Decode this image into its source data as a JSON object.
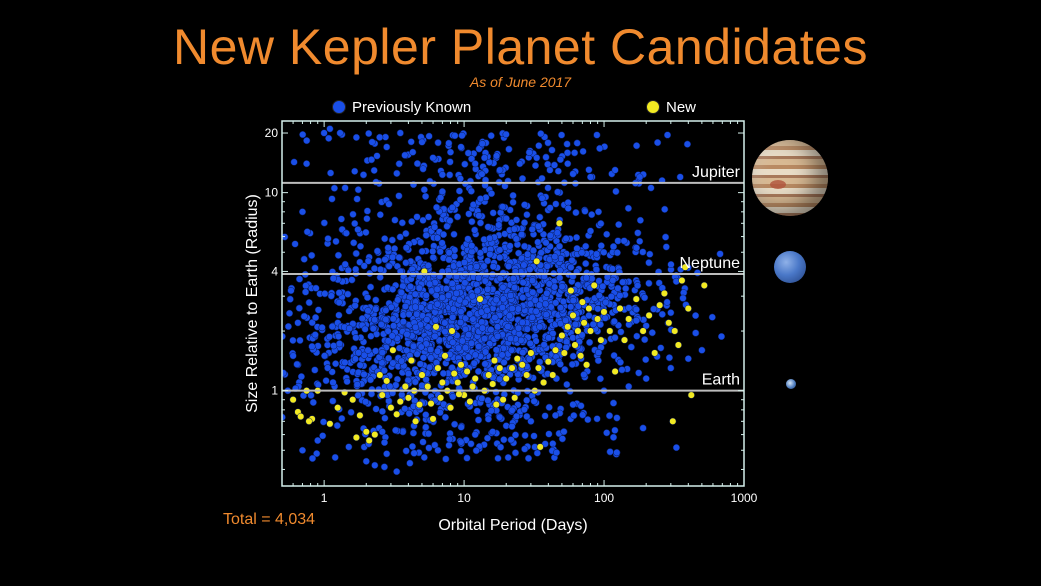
{
  "title": "New Kepler Planet Candidates",
  "subtitle": "As of June 2017",
  "total_label": "Total = 4,034",
  "colors": {
    "title": "#f08a2e",
    "previously_known": "#1a4fe8",
    "new": "#f2ea22",
    "reference_line": "#bcbcbc",
    "axes": "#d6f0ec"
  },
  "legend": [
    {
      "label": "Previously Known",
      "color": "#1a4fe8"
    },
    {
      "label": "New",
      "color": "#f2ea22"
    }
  ],
  "reference_planets": [
    {
      "name": "Jupiter",
      "radius": 11.2,
      "icon": "jupiter-image"
    },
    {
      "name": "Neptune",
      "radius": 3.88,
      "icon": "neptune-image"
    },
    {
      "name": "Earth",
      "radius": 1.0,
      "icon": "earth-image"
    }
  ],
  "chart_data": {
    "type": "scatter",
    "xlabel": "Orbital Period (Days)",
    "ylabel": "Size Relative to Earth (Radius)",
    "x_scale": "log",
    "y_scale": "log",
    "xlim": [
      0.5,
      1000
    ],
    "ylim": [
      0.33,
      23
    ],
    "x_ticks": [
      1,
      10,
      100,
      1000
    ],
    "x_tick_labels": [
      "1",
      "10",
      "100",
      "1000"
    ],
    "y_ticks": [
      1,
      4,
      10,
      20
    ],
    "y_tick_labels": [
      "1",
      "4",
      "10",
      "20"
    ],
    "grid": false,
    "legend_position": "top",
    "series": [
      {
        "name": "Previously Known",
        "color": "#1a4fe8",
        "count": 3815,
        "cloud": {
          "peak_x": 12,
          "peak_y": 2.3,
          "dist": "lognormal"
        },
        "points": [
          [
            1.0,
            20
          ],
          [
            1.1,
            21
          ],
          [
            1.3,
            20
          ],
          [
            1.7,
            19
          ],
          [
            2.2,
            18
          ],
          [
            2.8,
            17
          ],
          [
            3.5,
            20
          ],
          [
            4.3,
            16
          ],
          [
            5.0,
            18
          ],
          [
            6.0,
            15
          ],
          [
            8.0,
            16
          ],
          [
            9.5,
            17
          ],
          [
            12,
            14
          ],
          [
            14,
            15
          ],
          [
            18,
            13
          ],
          [
            25,
            14
          ],
          [
            33,
            15
          ],
          [
            41,
            13
          ],
          [
            55,
            14
          ],
          [
            80,
            12
          ],
          [
            120,
            13
          ],
          [
            180,
            12
          ],
          [
            260,
            11.5
          ],
          [
            350,
            12
          ],
          [
            0.7,
            0.5
          ],
          [
            0.9,
            0.56
          ],
          [
            1.2,
            0.46
          ],
          [
            1.5,
            0.52
          ],
          [
            2.0,
            0.44
          ],
          [
            2.3,
            0.42
          ],
          [
            2.8,
            0.48
          ],
          [
            3.3,
            0.39
          ],
          [
            4.1,
            0.43
          ],
          [
            5.2,
            0.46
          ],
          [
            6.5,
            0.5
          ],
          [
            7.8,
            0.53
          ],
          [
            9.5,
            0.55
          ],
          [
            12,
            0.6
          ],
          [
            16,
            0.62
          ],
          [
            22,
            0.66
          ],
          [
            30,
            0.7
          ],
          [
            45,
            0.75
          ],
          [
            60,
            0.85
          ],
          [
            100,
            1.0
          ],
          [
            150,
            1.05
          ],
          [
            200,
            1.15
          ],
          [
            300,
            1.3
          ],
          [
            400,
            1.45
          ],
          [
            500,
            1.6
          ],
          [
            0.55,
            1.0
          ],
          [
            0.6,
            1.5
          ],
          [
            0.65,
            2.2
          ],
          [
            0.58,
            3.2
          ],
          [
            0.62,
            5.5
          ],
          [
            0.7,
            8.0
          ],
          [
            0.75,
            14
          ]
        ]
      },
      {
        "name": "New",
        "color": "#f2ea22",
        "count": 219,
        "points": [
          [
            0.6,
            0.9
          ],
          [
            0.65,
            0.78
          ],
          [
            0.68,
            0.74
          ],
          [
            0.75,
            1.0
          ],
          [
            0.82,
            0.72
          ],
          [
            0.9,
            1.0
          ],
          [
            1.1,
            0.68
          ],
          [
            1.25,
            0.82
          ],
          [
            1.4,
            0.98
          ],
          [
            1.6,
            0.9
          ],
          [
            1.8,
            0.75
          ],
          [
            2.0,
            0.62
          ],
          [
            2.1,
            0.56
          ],
          [
            2.3,
            0.6
          ],
          [
            2.5,
            1.2
          ],
          [
            2.6,
            0.95
          ],
          [
            2.8,
            1.12
          ],
          [
            3.0,
            0.82
          ],
          [
            3.1,
            1.6
          ],
          [
            3.3,
            0.76
          ],
          [
            3.5,
            0.88
          ],
          [
            3.8,
            1.05
          ],
          [
            4.0,
            0.92
          ],
          [
            4.2,
            1.42
          ],
          [
            4.5,
            0.7
          ],
          [
            4.8,
            0.85
          ],
          [
            5.0,
            1.2
          ],
          [
            5.2,
            4.0
          ],
          [
            5.5,
            1.05
          ],
          [
            5.8,
            0.86
          ],
          [
            6.0,
            0.72
          ],
          [
            6.3,
            2.1
          ],
          [
            6.5,
            1.3
          ],
          [
            6.8,
            0.92
          ],
          [
            7.0,
            1.1
          ],
          [
            7.3,
            1.5
          ],
          [
            7.6,
            1.0
          ],
          [
            8.0,
            0.82
          ],
          [
            8.2,
            2.0
          ],
          [
            8.5,
            1.22
          ],
          [
            9.0,
            1.1
          ],
          [
            9.5,
            1.35
          ],
          [
            10,
            0.95
          ],
          [
            10.5,
            1.25
          ],
          [
            11,
            0.88
          ],
          [
            11.5,
            1.05
          ],
          [
            12,
            1.15
          ],
          [
            13,
            2.9
          ],
          [
            14,
            1.0
          ],
          [
            15,
            1.2
          ],
          [
            16,
            1.08
          ],
          [
            17,
            0.85
          ],
          [
            18,
            1.3
          ],
          [
            19,
            0.9
          ],
          [
            20,
            1.15
          ],
          [
            22,
            1.3
          ],
          [
            23,
            0.92
          ],
          [
            24,
            1.45
          ],
          [
            26,
            1.35
          ],
          [
            28,
            1.2
          ],
          [
            30,
            1.55
          ],
          [
            32,
            1.0
          ],
          [
            33,
            4.5
          ],
          [
            34,
            1.3
          ],
          [
            35,
            0.52
          ],
          [
            37,
            1.1
          ],
          [
            40,
            1.4
          ],
          [
            43,
            1.2
          ],
          [
            45,
            1.6
          ],
          [
            48,
            7.0
          ],
          [
            50,
            1.9
          ],
          [
            52,
            1.55
          ],
          [
            55,
            2.1
          ],
          [
            58,
            3.2
          ],
          [
            60,
            2.4
          ],
          [
            62,
            1.7
          ],
          [
            65,
            2.0
          ],
          [
            68,
            1.5
          ],
          [
            70,
            2.8
          ],
          [
            72,
            2.2
          ],
          [
            75,
            1.35
          ],
          [
            78,
            2.6
          ],
          [
            80,
            2.0
          ],
          [
            85,
            3.4
          ],
          [
            90,
            2.3
          ],
          [
            95,
            1.8
          ],
          [
            100,
            2.5
          ],
          [
            110,
            2.0
          ],
          [
            120,
            1.25
          ],
          [
            130,
            2.6
          ],
          [
            140,
            1.8
          ],
          [
            150,
            2.3
          ],
          [
            170,
            2.9
          ],
          [
            190,
            2.0
          ],
          [
            210,
            2.4
          ],
          [
            230,
            1.55
          ],
          [
            250,
            2.7
          ],
          [
            270,
            3.1
          ],
          [
            290,
            2.2
          ],
          [
            310,
            0.7
          ],
          [
            320,
            2.0
          ],
          [
            340,
            1.7
          ],
          [
            360,
            3.6
          ],
          [
            380,
            4.2
          ],
          [
            400,
            2.6
          ],
          [
            420,
            0.95
          ],
          [
            520,
            3.4
          ],
          [
            0.78,
            0.7
          ],
          [
            1.7,
            0.58
          ],
          [
            4.4,
            1.0
          ],
          [
            9.2,
            0.96
          ],
          [
            16.5,
            1.42
          ]
        ]
      }
    ]
  }
}
